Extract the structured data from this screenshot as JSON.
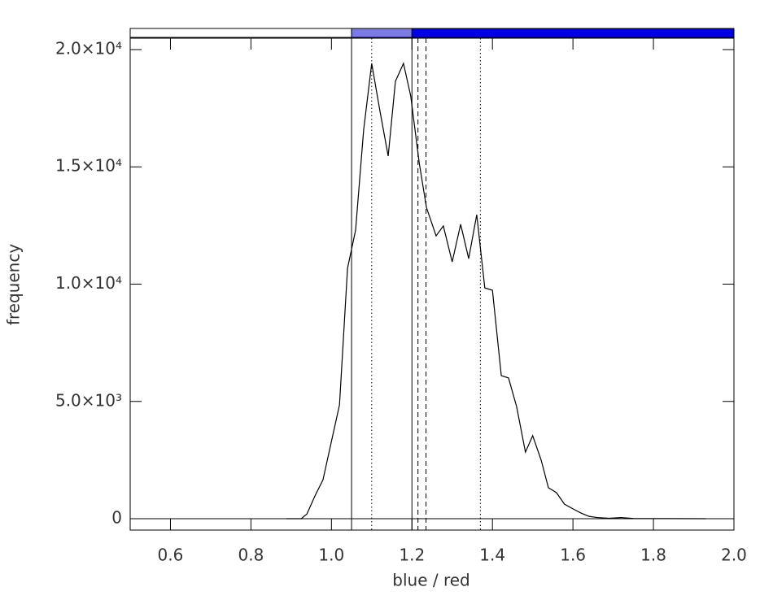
{
  "chart_data": {
    "type": "line",
    "xlabel": "blue / red",
    "ylabel": "frequency",
    "xlim": [
      0.5,
      2.0
    ],
    "ylim": [
      -485,
      20485
    ],
    "xticks": [
      0.6,
      0.8,
      {
        "value": 1.0,
        "label": "1.0"
      },
      1.2,
      1.4,
      1.6,
      1.8,
      {
        "value": 2.0,
        "label": "2.0"
      }
    ],
    "yticks": [
      0,
      {
        "value": 5000,
        "label": "5.0×10³"
      },
      {
        "value": 10000,
        "label": "1.0×10⁴"
      },
      {
        "value": 15000,
        "label": "1.5×10⁴"
      },
      {
        "value": 20000,
        "label": "2.0×10⁴"
      }
    ],
    "hlines": [
      0
    ],
    "vlines": [
      {
        "x": 1.05,
        "style": "solid"
      },
      {
        "x": 1.2,
        "style": "solid"
      },
      {
        "x": 1.1,
        "style": "dotted"
      },
      {
        "x": 1.37,
        "style": "dotted"
      },
      {
        "x": 1.215,
        "style": "dashed"
      },
      {
        "x": 1.235,
        "style": "dashed"
      }
    ],
    "colorbar": [
      {
        "from": 0.5,
        "to": 1.05,
        "color": "#ffffff"
      },
      {
        "from": 1.05,
        "to": 1.2,
        "color": "#7b7be8"
      },
      {
        "from": 1.2,
        "to": 2.0,
        "color": "#0000e6"
      }
    ],
    "color": "#000000",
    "x": [
      0.888,
      0.925,
      0.939,
      0.959,
      0.979,
      0.999,
      1.02,
      1.04,
      1.06,
      1.08,
      1.1,
      1.12,
      1.141,
      1.159,
      1.179,
      1.197,
      1.218,
      1.236,
      1.26,
      1.278,
      1.3,
      1.321,
      1.341,
      1.361,
      1.381,
      1.4,
      1.422,
      1.44,
      1.46,
      1.482,
      1.5,
      1.521,
      1.539,
      1.559,
      1.579,
      1.6,
      1.62,
      1.64,
      1.66,
      1.69,
      1.72,
      1.75,
      1.93
    ],
    "values": [
      0,
      0,
      200,
      970,
      1660,
      3220,
      4850,
      10680,
      12300,
      16570,
      19410,
      17430,
      15460,
      18650,
      19410,
      18020,
      15180,
      13270,
      12060,
      12480,
      10950,
      12550,
      11090,
      12960,
      9840,
      9740,
      6100,
      6000,
      4780,
      2840,
      3540,
      2500,
      1320,
      1110,
      620,
      420,
      240,
      100,
      50,
      20,
      50,
      10,
      0
    ]
  }
}
